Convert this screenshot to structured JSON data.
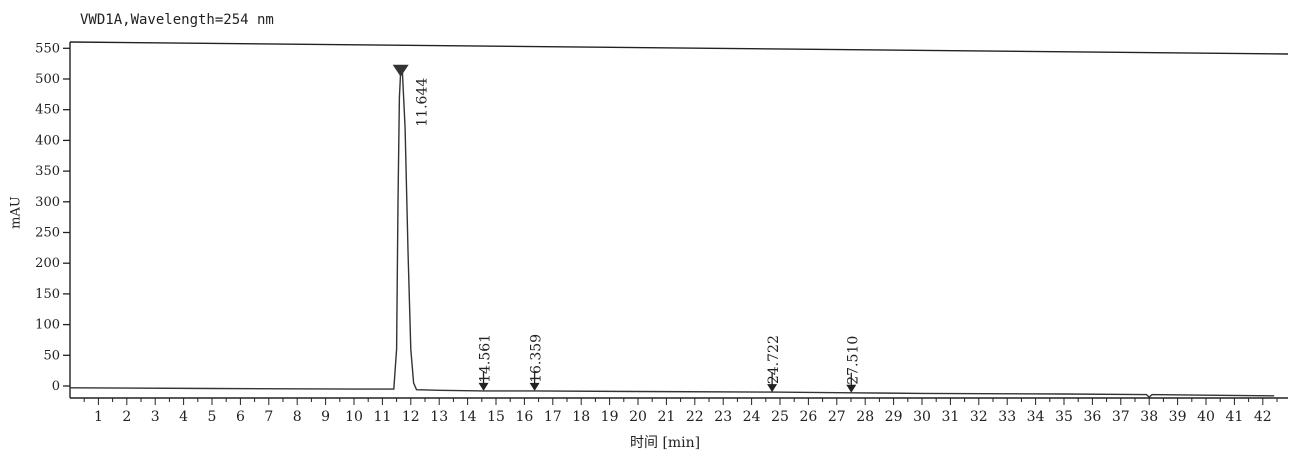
{
  "chart_data": {
    "type": "line",
    "title": "VWD1A,Wavelength=254 nm",
    "xlabel": "时间 [min]",
    "ylabel": "mAU",
    "xlim": [
      0,
      42.5
    ],
    "ylim": [
      -25,
      570
    ],
    "x_ticks": [
      1,
      2,
      3,
      4,
      5,
      6,
      7,
      8,
      9,
      10,
      11,
      12,
      13,
      14,
      15,
      16,
      17,
      18,
      19,
      20,
      21,
      22,
      23,
      24,
      25,
      26,
      27,
      28,
      29,
      30,
      31,
      32,
      33,
      34,
      35,
      36,
      37,
      38,
      39,
      40,
      41,
      42
    ],
    "y_ticks": [
      0,
      50,
      100,
      150,
      200,
      250,
      300,
      350,
      400,
      450,
      500,
      550
    ],
    "series": [
      {
        "x": [
          0,
          5,
          10,
          11.4,
          11.5,
          11.55,
          11.6,
          11.65,
          11.7,
          11.8,
          11.9,
          12.0,
          12.1,
          12.2,
          13,
          14.56,
          16.36,
          20,
          24.72,
          27.51,
          30,
          35,
          37.9,
          38.0,
          38.1,
          40,
          42.4
        ],
        "y": [
          -3,
          -4,
          -5,
          -5,
          60,
          300,
          470,
          520,
          515,
          420,
          220,
          60,
          5,
          -6,
          -7,
          -8,
          -8,
          -9,
          -10,
          -11,
          -12,
          -13,
          -14,
          -18,
          -14,
          -15,
          -16
        ]
      }
    ],
    "peak_labels": [
      {
        "label": "11.644",
        "x": 11.644,
        "y": 520
      },
      {
        "label": "14.561",
        "x": 14.561,
        "y": -8
      },
      {
        "label": "16.359",
        "x": 16.359,
        "y": -8
      },
      {
        "label": "24.722",
        "x": 24.722,
        "y": -10
      },
      {
        "label": "27.510",
        "x": 27.51,
        "y": -11
      }
    ]
  }
}
